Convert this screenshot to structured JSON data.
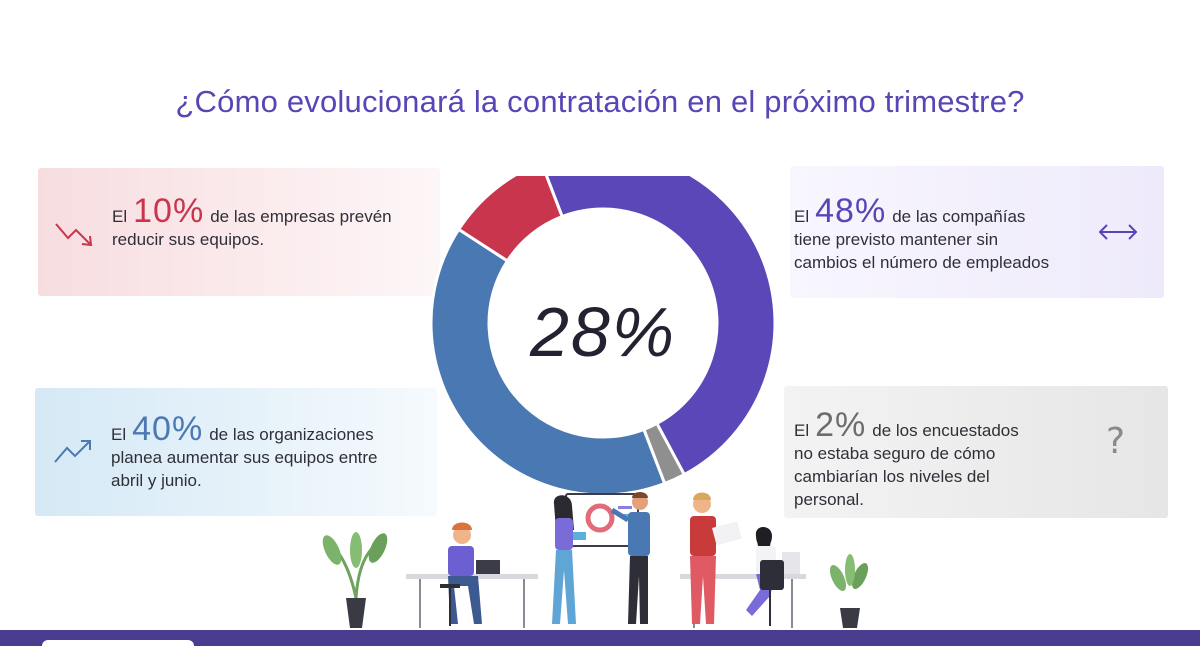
{
  "title": "¿Cómo evolucionará la contratación en el próximo trimestre?",
  "cards": {
    "decrease": {
      "el": "El",
      "pct": "10%",
      "rest_inline": "de las empresas prevén",
      "rest_line": "reducir sus equipos.",
      "icon": "trend-down-arrow-icon"
    },
    "maintain": {
      "el": "El",
      "pct": "48%",
      "rest_inline": "de las compañías",
      "rest_line1": "tiene previsto mantener sin",
      "rest_line2": "cambios el número de empleados",
      "icon": "horizontal-double-arrow-icon"
    },
    "increase": {
      "el": "El",
      "pct": "40%",
      "rest_inline": "de las organizaciones",
      "rest_line1": "planea aumentar sus equipos entre",
      "rest_line2": "abril y junio.",
      "icon": "trend-up-arrow-icon"
    },
    "unsure": {
      "el": "El",
      "pct": "2%",
      "rest_inline": "de los encuestados",
      "rest_line1": "no estaba seguro de cómo",
      "rest_line2": "cambiarían los niveles del",
      "rest_line3": "personal.",
      "icon": "question-mark-icon",
      "icon_glyph": "?"
    }
  },
  "center_label": "28%",
  "chart_data": {
    "type": "pie",
    "variant": "donut",
    "categories": [
      "Mantener",
      "Sin seguridad",
      "Aumentar",
      "Reducir"
    ],
    "values": [
      48,
      2,
      40,
      10
    ],
    "colors": [
      "#5c47b8",
      "#8f8f8f",
      "#4a78b2",
      "#c9354d"
    ],
    "center_label": "28%"
  },
  "colors": {
    "title": "#5a45b6",
    "bottom_bar": "#4a3c8f"
  }
}
